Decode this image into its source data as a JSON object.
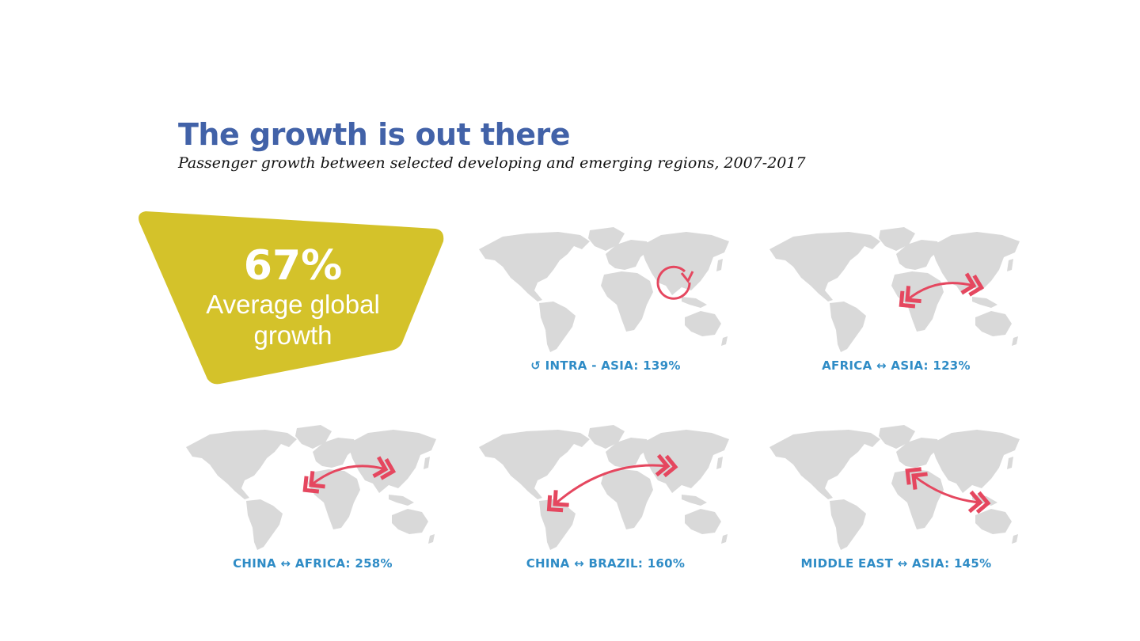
{
  "title": "The growth is out there",
  "subtitle": "Passenger growth between selected developing and emerging regions, 2007-2017",
  "highlight": {
    "value": "67%",
    "label_line1": "Average global",
    "label_line2": "growth",
    "color": "#d4c22a"
  },
  "colors": {
    "title": "#4262a8",
    "caption": "#2f8cc6",
    "arrow": "#e5475f",
    "land": "#d9d9d9"
  },
  "routes": [
    {
      "caption": "↺ INTRA - ASIA: 139%",
      "route": "Intra-Asia",
      "growth_pct": 139
    },
    {
      "caption": "AFRICA ↔ ASIA: 123%",
      "route": "Africa-Asia",
      "growth_pct": 123
    },
    {
      "caption": "CHINA ↔ AFRICA: 258%",
      "route": "China-Africa",
      "growth_pct": 258
    },
    {
      "caption": "CHINA ↔ BRAZIL: 160%",
      "route": "China-Brazil",
      "growth_pct": 160
    },
    {
      "caption": "MIDDLE EAST ↔ ASIA: 145%",
      "route": "Middle East-Asia",
      "growth_pct": 145
    }
  ]
}
